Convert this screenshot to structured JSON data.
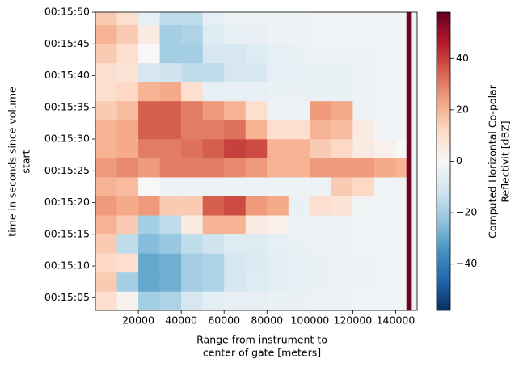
{
  "chart_data": {
    "type": "heatmap",
    "xlabel": [
      "Range from instrument to",
      "center of gate [meters]"
    ],
    "ylabel": [
      "time in seconds since volume",
      "start"
    ],
    "colorbar_label": [
      "Computed Horizontal Co-polar",
      "Reflectivit [dBZ]"
    ],
    "colormap": [
      "#053061",
      "#2166ac",
      "#4393c3",
      "#92c5de",
      "#d1e5f0",
      "#f7f7f7",
      "#fddbc7",
      "#f4a582",
      "#d6604d",
      "#b2182b",
      "#67001f"
    ],
    "xlim": [
      0,
      150000
    ],
    "xticks": [
      20000,
      40000,
      60000,
      80000,
      100000,
      120000,
      140000
    ],
    "ylim": [
      903,
      950
    ],
    "yticks": [
      {
        "value": 905,
        "label": "00:15:05"
      },
      {
        "value": 910,
        "label": "00:15:10"
      },
      {
        "value": 915,
        "label": "00:15:15"
      },
      {
        "value": 920,
        "label": "00:15:20"
      },
      {
        "value": 925,
        "label": "00:15:25"
      },
      {
        "value": 930,
        "label": "00:15:30"
      },
      {
        "value": 935,
        "label": "00:15:35"
      },
      {
        "value": 940,
        "label": "00:15:40"
      },
      {
        "value": 945,
        "label": "00:15:45"
      },
      {
        "value": 950,
        "label": "00:15:50"
      }
    ],
    "clim": [
      -58,
      58
    ],
    "cticks": [
      {
        "value": -40,
        "label": "−40"
      },
      {
        "value": -20,
        "label": "−20"
      },
      0,
      20,
      40
    ],
    "x_edges": [
      0,
      10000,
      20000,
      30000,
      40000,
      50000,
      60000,
      70000,
      80000,
      90000,
      100000,
      110000,
      120000,
      130000,
      140000,
      145000,
      147500,
      150000
    ],
    "y_edges": [
      903,
      906,
      909,
      912,
      915,
      918,
      921,
      924,
      927,
      930,
      933,
      936,
      939,
      942,
      945,
      948,
      950
    ],
    "z": [
      [
        10,
        2,
        -20,
        -18,
        -10,
        -6,
        -5,
        -5,
        -4,
        -4,
        -3,
        -3,
        -2,
        -2,
        -2,
        57,
        -3
      ],
      [
        15,
        -20,
        -30,
        -28,
        -20,
        -18,
        -10,
        -8,
        -6,
        -5,
        -4,
        -3,
        -3,
        -2,
        -2,
        57,
        -3
      ],
      [
        12,
        10,
        -30,
        -28,
        -20,
        -18,
        -10,
        -9,
        -6,
        -5,
        -4,
        -3,
        -3,
        -2,
        -2,
        57,
        -3
      ],
      [
        15,
        -15,
        -25,
        -22,
        -15,
        -12,
        -8,
        -8,
        -5,
        -4,
        -3,
        -3,
        -2,
        -2,
        -2,
        57,
        -3
      ],
      [
        20,
        15,
        -20,
        -15,
        5,
        20,
        20,
        5,
        3,
        -3,
        -3,
        -3,
        -2,
        -2,
        -2,
        57,
        -3
      ],
      [
        25,
        22,
        25,
        15,
        15,
        35,
        38,
        25,
        22,
        -4,
        10,
        8,
        -2,
        -2,
        -2,
        57,
        -3
      ],
      [
        20,
        18,
        0,
        -3,
        -3,
        -3,
        -3,
        -3,
        -3,
        -3,
        -3,
        15,
        12,
        -2,
        -2,
        57,
        -3
      ],
      [
        25,
        28,
        25,
        30,
        30,
        30,
        28,
        25,
        20,
        20,
        25,
        25,
        25,
        22,
        20,
        57,
        -3
      ],
      [
        20,
        22,
        30,
        30,
        32,
        35,
        40,
        38,
        20,
        20,
        15,
        12,
        5,
        3,
        0,
        57,
        -3
      ],
      [
        20,
        22,
        35,
        35,
        30,
        30,
        32,
        20,
        10,
        10,
        20,
        18,
        5,
        -2,
        -2,
        57,
        -3
      ],
      [
        15,
        18,
        35,
        35,
        30,
        25,
        20,
        10,
        -3,
        -3,
        25,
        22,
        -3,
        -2,
        -2,
        57,
        -3
      ],
      [
        10,
        12,
        20,
        22,
        10,
        -5,
        -5,
        -5,
        -4,
        -4,
        -4,
        -4,
        -3,
        -2,
        -2,
        57,
        -3
      ],
      [
        10,
        8,
        -10,
        -12,
        -15,
        -15,
        -10,
        -10,
        -5,
        -5,
        -4,
        -4,
        -3,
        -2,
        -2,
        57,
        -3
      ],
      [
        15,
        10,
        0,
        -20,
        -20,
        -10,
        -10,
        -8,
        -5,
        -4,
        -3,
        -3,
        -3,
        -2,
        -2,
        57,
        -3
      ],
      [
        20,
        15,
        5,
        -20,
        -18,
        -8,
        -5,
        -5,
        -3,
        -3,
        -2,
        -2,
        -2,
        -2,
        -2,
        57,
        -3
      ],
      [
        15,
        10,
        -5,
        -15,
        -15,
        -5,
        -3,
        -3,
        -3,
        -3,
        -2,
        -2,
        -2,
        -2,
        -2,
        57,
        -3
      ]
    ]
  }
}
